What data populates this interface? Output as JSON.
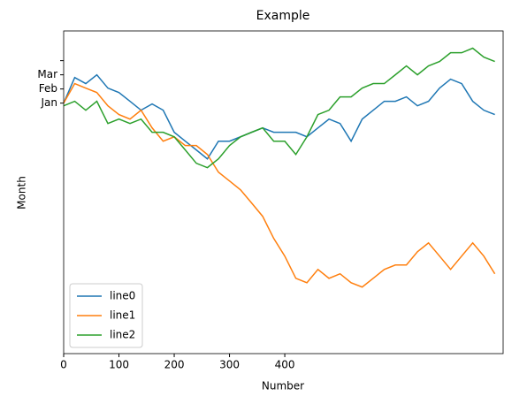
{
  "chart_data": {
    "type": "line",
    "title": "Example",
    "xlabel": "Number",
    "ylabel": "Month",
    "x": [
      0,
      20,
      40,
      60,
      80,
      100,
      120,
      140,
      160,
      180,
      200,
      220,
      240,
      260,
      280,
      300,
      320,
      340,
      360,
      380,
      400,
      420,
      440,
      460,
      480,
      500,
      520,
      540,
      560,
      580,
      600,
      620,
      640,
      660,
      680,
      700,
      720,
      740,
      760,
      780
    ],
    "series": [
      {
        "name": "line0",
        "color": "#1f77b4",
        "values": [
          0,
          1.81,
          1.38,
          2,
          1.06,
          0.75,
          0.13,
          -0.5,
          -0.06,
          -0.5,
          -2.06,
          -2.69,
          -3.31,
          -3.94,
          -2.69,
          -2.69,
          -2.38,
          -2.06,
          -1.75,
          -2.06,
          -2.06,
          -2.06,
          -2.38,
          -1.75,
          -1.13,
          -1.44,
          -2.69,
          -1.13,
          -0.5,
          0.13,
          0.13,
          0.44,
          -0.19,
          0.13,
          1.06,
          1.69,
          1.38,
          0.13,
          -0.5,
          -0.81
        ]
      },
      {
        "name": "line1",
        "color": "#ff7f0e",
        "values": [
          0,
          1.38,
          1.06,
          0.75,
          -0.19,
          -0.81,
          -1.13,
          -0.5,
          -1.75,
          -2.69,
          -2.38,
          -3.0,
          -3.0,
          -3.63,
          -4.88,
          -5.5,
          -6.13,
          -7.06,
          -8.0,
          -9.56,
          -10.81,
          -12.38,
          -12.69,
          -11.75,
          -12.38,
          -12.06,
          -12.69,
          -13.0,
          -12.38,
          -11.75,
          -11.44,
          -11.44,
          -10.5,
          -9.88,
          -10.81,
          -11.75,
          -10.81,
          -9.88,
          -10.81,
          -12.06
        ]
      },
      {
        "name": "line2",
        "color": "#2ca02c",
        "values": [
          -0.19,
          0.13,
          -0.5,
          0.13,
          -1.44,
          -1.13,
          -1.44,
          -1.13,
          -2.06,
          -2.06,
          -2.38,
          -3.31,
          -4.25,
          -4.56,
          -3.94,
          -3.0,
          -2.38,
          -2.06,
          -1.75,
          -2.69,
          -2.69,
          -3.63,
          -2.38,
          -0.81,
          -0.5,
          0.44,
          0.44,
          1.06,
          1.38,
          1.38,
          2.0,
          2.63,
          2.0,
          2.63,
          2.94,
          3.56,
          3.56,
          3.88,
          3.25,
          2.94
        ]
      }
    ],
    "xlim": [
      0,
      795
    ],
    "ylim": [
      -17.7,
      5.1
    ],
    "xticks": [
      0,
      100,
      200,
      300,
      400
    ],
    "yticks": [
      {
        "value": 0,
        "label": "Jan"
      },
      {
        "value": 1,
        "label": "Feb"
      },
      {
        "value": 2,
        "label": "Mar"
      },
      {
        "value": 3,
        "label": null
      }
    ],
    "legend": "lower left"
  }
}
